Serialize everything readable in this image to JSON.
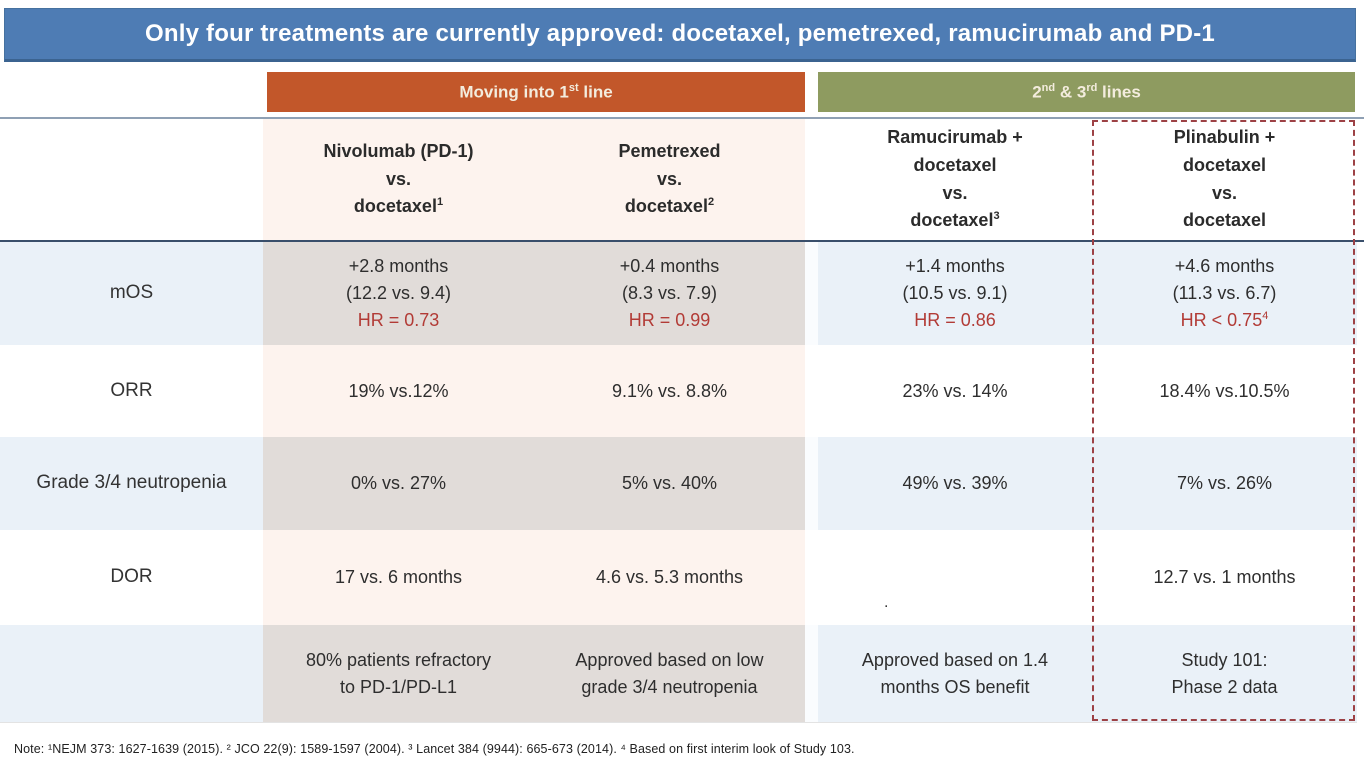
{
  "title": "Only four treatments are currently approved: docetaxel, pemetrexed, ramucirumab and PD-1",
  "group_headers": {
    "first_line": {
      "pre": "Moving into 1",
      "sup": "st",
      "post": " line"
    },
    "later_lines": {
      "pre": "2",
      "sup1": "nd",
      "mid": " & 3",
      "sup2": "rd",
      "post": " lines"
    }
  },
  "columns": [
    {
      "line1": "Nivolumab (PD-1)",
      "line2": "",
      "vs": "vs.",
      "drug": "docetaxel",
      "sup": "1"
    },
    {
      "line1": "Pemetrexed",
      "line2": "",
      "vs": "vs.",
      "drug": "docetaxel",
      "sup": "2"
    },
    {
      "line1": "Ramucirumab +",
      "line2": "docetaxel",
      "vs": "vs.",
      "drug": "docetaxel",
      "sup": "3"
    },
    {
      "line1": "Plinabulin +",
      "line2": "docetaxel",
      "vs": "vs.",
      "drug": "docetaxel",
      "sup": ""
    }
  ],
  "rows": {
    "mos": {
      "label": "mOS",
      "cells": [
        {
          "l1": "+2.8 months",
          "l2": "(12.2 vs. 9.4)",
          "hr": "HR = 0.73",
          "hr_sup": ""
        },
        {
          "l1": "+0.4 months",
          "l2": "(8.3 vs. 7.9)",
          "hr": "HR = 0.99",
          "hr_sup": ""
        },
        {
          "l1": "+1.4 months",
          "l2": "(10.5 vs. 9.1)",
          "hr": "HR = 0.86",
          "hr_sup": ""
        },
        {
          "l1": "+4.6 months",
          "l2": "(11.3 vs. 6.7)",
          "hr": "HR < 0.75",
          "hr_sup": "4"
        }
      ]
    },
    "orr": {
      "label": "ORR",
      "cells": [
        "19% vs.12%",
        "9.1% vs. 8.8%",
        "23% vs. 14%",
        "18.4% vs.10.5%"
      ]
    },
    "neutropenia": {
      "label": "Grade 3/4 neutropenia",
      "cells": [
        "0% vs. 27%",
        "5% vs. 40%",
        "49% vs. 39%",
        "7% vs. 26%"
      ]
    },
    "dor": {
      "label": "DOR",
      "cells": [
        "17 vs. 6 months",
        "4.6 vs. 5.3 months",
        "",
        "12.7 vs. 1 months"
      ]
    },
    "summary": {
      "label": "",
      "cells": [
        {
          "l1": "80% patients refractory",
          "l2": "to PD-1/PD-L1"
        },
        {
          "l1": "Approved based on low",
          "l2": "grade 3/4 neutropenia"
        },
        {
          "l1": "Approved based on 1.4",
          "l2": "months OS benefit"
        },
        {
          "l1": "Study 101:",
          "l2": "Phase 2 data"
        }
      ]
    }
  },
  "stray_mark": ".",
  "footnote": "Note: ¹NEJM 373: 1627-1639 (2015). ² JCO 22(9): 1589-1597 (2004). ³ Lancet 384 (9944): 665-673 (2014). ⁴ Based on first interim look of Study 103.",
  "colors": {
    "title_bar": "#4e7cb4",
    "first_line_bar": "#c2572a",
    "later_lines_bar": "#8e9b60",
    "first_line_tint_light": "#fdf3ee",
    "first_line_tint_dark": "#e1dcd9",
    "blue_row_stripe": "#eaf1f8",
    "hr_text_red": "#b23b36",
    "highlight_dashed_border": "#9d4145"
  }
}
